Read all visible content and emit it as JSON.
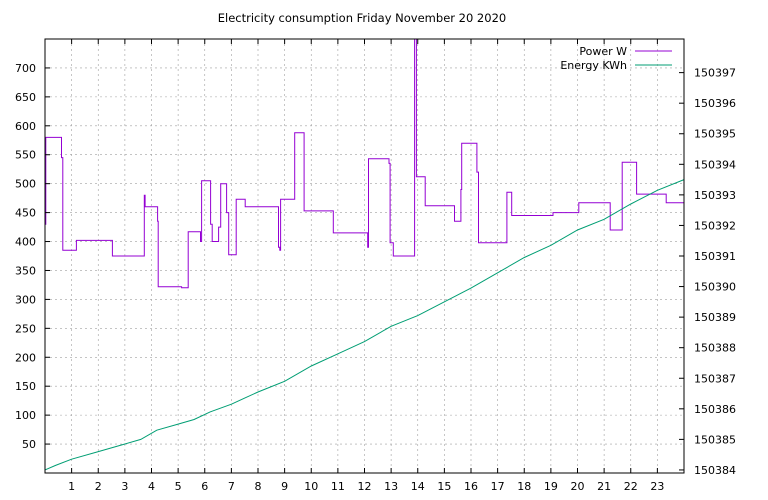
{
  "chart_data": {
    "type": "line",
    "title": "Electricity consumption Friday November 20 2020",
    "xlabel": "",
    "ylabel": "",
    "y2label": "",
    "xlim": [
      0,
      24
    ],
    "ylim": [
      0,
      750
    ],
    "y2lim": [
      150383.9,
      150398.1
    ],
    "x_ticks": [
      "1",
      "2",
      "3",
      "4",
      "5",
      "6",
      "7",
      "8",
      "9",
      "10",
      "11",
      "12",
      "13",
      "14",
      "15",
      "16",
      "17",
      "18",
      "19",
      "20",
      "21",
      "22",
      "23"
    ],
    "y_ticks": [
      50,
      100,
      150,
      200,
      250,
      300,
      350,
      400,
      450,
      500,
      550,
      600,
      650,
      700
    ],
    "y2_ticks": [
      "150384",
      "150385",
      "150386",
      "150387",
      "150388",
      "150389",
      "150390",
      "150391",
      "150392",
      "150393",
      "150394",
      "150395",
      "150396",
      "150397"
    ],
    "grid": true,
    "legend_position": "top-right",
    "series": [
      {
        "name": "Power W",
        "axis": "left",
        "color": "#9400d3",
        "step": true,
        "points": [
          [
            0.0,
            430
          ],
          [
            0.03,
            580
          ],
          [
            0.6,
            580
          ],
          [
            0.62,
            545
          ],
          [
            0.67,
            385
          ],
          [
            1.15,
            385
          ],
          [
            1.18,
            402
          ],
          [
            2.5,
            402
          ],
          [
            2.53,
            375
          ],
          [
            3.7,
            375
          ],
          [
            3.73,
            480
          ],
          [
            3.76,
            460
          ],
          [
            4.2,
            460
          ],
          [
            4.23,
            435
          ],
          [
            4.25,
            322
          ],
          [
            5.1,
            322
          ],
          [
            5.13,
            320
          ],
          [
            5.35,
            320
          ],
          [
            5.38,
            417
          ],
          [
            5.82,
            417
          ],
          [
            5.84,
            400
          ],
          [
            5.88,
            505
          ],
          [
            6.2,
            505
          ],
          [
            6.22,
            430
          ],
          [
            6.28,
            400
          ],
          [
            6.5,
            400
          ],
          [
            6.52,
            425
          ],
          [
            6.6,
            500
          ],
          [
            6.8,
            500
          ],
          [
            6.82,
            450
          ],
          [
            6.9,
            377
          ],
          [
            7.15,
            377
          ],
          [
            7.18,
            473
          ],
          [
            7.5,
            473
          ],
          [
            7.52,
            460
          ],
          [
            8.75,
            460
          ],
          [
            8.77,
            390
          ],
          [
            8.82,
            385
          ],
          [
            8.85,
            473
          ],
          [
            9.35,
            473
          ],
          [
            9.38,
            588
          ],
          [
            9.7,
            588
          ],
          [
            9.73,
            453
          ],
          [
            10.8,
            453
          ],
          [
            10.83,
            415
          ],
          [
            12.1,
            415
          ],
          [
            12.12,
            390
          ],
          [
            12.15,
            543
          ],
          [
            12.9,
            543
          ],
          [
            12.92,
            535
          ],
          [
            12.96,
            398
          ],
          [
            13.05,
            398
          ],
          [
            13.08,
            375
          ],
          [
            13.85,
            375
          ],
          [
            13.88,
            750
          ],
          [
            13.9,
            750
          ],
          [
            13.92,
            750
          ],
          [
            13.95,
            512
          ],
          [
            14.25,
            512
          ],
          [
            14.28,
            462
          ],
          [
            15.35,
            462
          ],
          [
            15.38,
            435
          ],
          [
            15.6,
            435
          ],
          [
            15.62,
            490
          ],
          [
            15.65,
            570
          ],
          [
            16.2,
            570
          ],
          [
            16.22,
            520
          ],
          [
            16.28,
            398
          ],
          [
            17.3,
            398
          ],
          [
            17.35,
            485
          ],
          [
            17.5,
            485
          ],
          [
            17.53,
            445
          ],
          [
            19.05,
            445
          ],
          [
            19.08,
            450
          ],
          [
            20.0,
            450
          ],
          [
            20.05,
            467
          ],
          [
            21.2,
            467
          ],
          [
            21.23,
            420
          ],
          [
            21.65,
            420
          ],
          [
            21.68,
            537
          ],
          [
            22.2,
            537
          ],
          [
            22.22,
            482
          ],
          [
            23.3,
            482
          ],
          [
            23.33,
            467
          ],
          [
            24.0,
            467
          ]
        ]
      },
      {
        "name": "Energy KWh",
        "axis": "right",
        "color": "#009e73",
        "step": false,
        "points": [
          [
            0,
            150384.0
          ],
          [
            0.4,
            150384.15
          ],
          [
            1,
            150384.35
          ],
          [
            2,
            150384.6
          ],
          [
            3,
            150384.85
          ],
          [
            3.6,
            150385.0
          ],
          [
            4.2,
            150385.3
          ],
          [
            5,
            150385.5
          ],
          [
            5.6,
            150385.65
          ],
          [
            6.2,
            150385.9
          ],
          [
            7,
            150386.15
          ],
          [
            7.5,
            150386.35
          ],
          [
            8,
            150386.55
          ],
          [
            9,
            150386.9
          ],
          [
            10,
            150387.4
          ],
          [
            11,
            150387.8
          ],
          [
            12,
            150388.2
          ],
          [
            13,
            150388.7
          ],
          [
            14,
            150389.05
          ],
          [
            15,
            150389.5
          ],
          [
            16,
            150389.95
          ],
          [
            17,
            150390.45
          ],
          [
            18,
            150390.95
          ],
          [
            19,
            150391.35
          ],
          [
            20,
            150391.85
          ],
          [
            21,
            150392.2
          ],
          [
            22,
            150392.7
          ],
          [
            23,
            150393.15
          ],
          [
            24,
            150393.5
          ]
        ]
      }
    ]
  }
}
